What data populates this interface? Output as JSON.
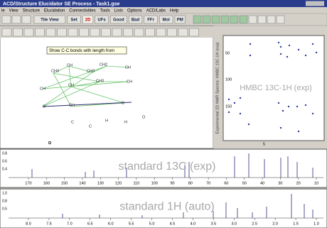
{
  "window": {
    "title": "ACD/Structure Elucidator SE Process - Task1.gse",
    "menu": [
      "le",
      "View",
      "Structure",
      "Elucidation",
      "Connectivities",
      "Tools",
      "Lists",
      "Options",
      "ACD/Labs",
      "Help"
    ]
  },
  "toolbar": {
    "buttons": [
      "Tile View",
      "Set",
      "2D",
      "UFs",
      "Good",
      "Bad",
      "FFr",
      "Mol",
      "PM"
    ],
    "tooltip": "Show C-C bonds with length from"
  },
  "structure": {
    "labels": [
      "CH3",
      "CH",
      "CH3",
      "CH2",
      "CH",
      "CH",
      "CH3",
      "CH",
      "CH",
      "CH",
      "C",
      "C",
      "C",
      "H",
      "H",
      "O",
      "O"
    ]
  },
  "hmbc": {
    "title": "HMBC 13C-1H (exp)",
    "side_label": "Experimental 2D NMR Spectra: HMBC 13C-1H (exp)",
    "yticks": [
      "50",
      "100",
      "150"
    ],
    "xticks": [
      "5"
    ]
  },
  "c13": {
    "title": "standard 13C (exp)",
    "yticks": [
      "0.8",
      "0.6",
      "0.4"
    ],
    "xticks": [
      "170",
      "160",
      "150",
      "140",
      "130",
      "120",
      "110",
      "100",
      "90",
      "80",
      "70",
      "60",
      "50",
      "40",
      "30",
      "20",
      "10"
    ]
  },
  "h1": {
    "title": "standard 1H (auto)",
    "yticks": [
      "1.0",
      "0.8",
      "0.5"
    ],
    "xticks": [
      "8.0",
      "7.5",
      "7.0",
      "6.5",
      "6.0",
      "5.5",
      "5.0",
      "4.5",
      "4.0",
      "3.5",
      "3.0",
      "2.5",
      "2.0",
      "1.5",
      "1.0"
    ]
  }
}
